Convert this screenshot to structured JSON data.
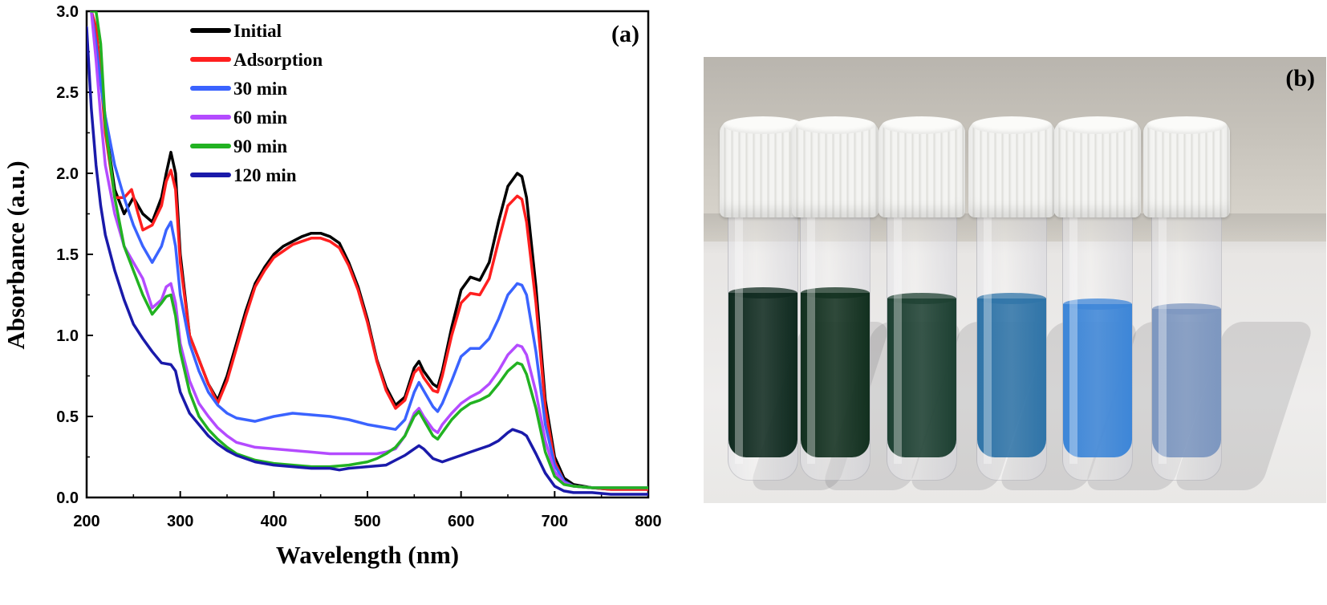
{
  "chart_data": {
    "type": "line",
    "panel_label": "(a)",
    "xlabel": "Wavelength (nm)",
    "ylabel": "Absorbance (a.u.)",
    "xlim": [
      200,
      800
    ],
    "ylim": [
      0,
      3.0
    ],
    "xticks": [
      200,
      300,
      400,
      500,
      600,
      700,
      800
    ],
    "yticks": [
      "0.0",
      "0.5",
      "1.0",
      "1.5",
      "2.0",
      "2.5",
      "3.0"
    ],
    "legend_position": "top-left",
    "grid": false,
    "series": [
      {
        "name": "Initial",
        "color": "#000000",
        "x": [
          205,
          210,
          215,
          220,
          230,
          240,
          250,
          260,
          270,
          280,
          285,
          290,
          295,
          300,
          310,
          320,
          330,
          340,
          350,
          360,
          370,
          380,
          390,
          400,
          410,
          420,
          430,
          440,
          450,
          460,
          470,
          480,
          490,
          500,
          510,
          520,
          530,
          540,
          550,
          555,
          560,
          570,
          575,
          580,
          590,
          600,
          610,
          620,
          630,
          640,
          650,
          660,
          665,
          670,
          680,
          690,
          700,
          710,
          720,
          740,
          760,
          780,
          800
        ],
        "y": [
          3.0,
          2.9,
          2.6,
          2.3,
          1.9,
          1.75,
          1.85,
          1.75,
          1.7,
          1.85,
          2.0,
          2.13,
          2.0,
          1.5,
          1.0,
          0.85,
          0.7,
          0.6,
          0.75,
          0.95,
          1.15,
          1.32,
          1.42,
          1.5,
          1.55,
          1.58,
          1.61,
          1.63,
          1.63,
          1.61,
          1.57,
          1.45,
          1.3,
          1.1,
          0.85,
          0.68,
          0.57,
          0.62,
          0.8,
          0.84,
          0.78,
          0.7,
          0.68,
          0.78,
          1.05,
          1.28,
          1.36,
          1.34,
          1.45,
          1.7,
          1.92,
          2.0,
          1.98,
          1.85,
          1.3,
          0.6,
          0.25,
          0.12,
          0.08,
          0.06,
          0.05,
          0.05,
          0.05
        ]
      },
      {
        "name": "Adsorption",
        "color": "#ff1f1f",
        "x": [
          205,
          210,
          215,
          220,
          230,
          240,
          248,
          255,
          260,
          270,
          280,
          285,
          290,
          295,
          300,
          310,
          320,
          330,
          340,
          350,
          360,
          370,
          380,
          390,
          400,
          410,
          420,
          430,
          440,
          450,
          460,
          470,
          480,
          490,
          500,
          510,
          520,
          530,
          540,
          550,
          555,
          560,
          570,
          575,
          580,
          590,
          600,
          610,
          620,
          630,
          640,
          650,
          660,
          665,
          670,
          680,
          690,
          700,
          710,
          720,
          740,
          760,
          780,
          800
        ],
        "y": [
          3.0,
          2.9,
          2.6,
          2.25,
          1.85,
          1.85,
          1.9,
          1.75,
          1.65,
          1.68,
          1.8,
          1.95,
          2.02,
          1.9,
          1.45,
          1.0,
          0.85,
          0.7,
          0.58,
          0.72,
          0.92,
          1.12,
          1.3,
          1.4,
          1.48,
          1.52,
          1.56,
          1.58,
          1.6,
          1.6,
          1.58,
          1.54,
          1.43,
          1.28,
          1.08,
          0.84,
          0.66,
          0.55,
          0.6,
          0.77,
          0.8,
          0.74,
          0.66,
          0.65,
          0.75,
          1.0,
          1.2,
          1.26,
          1.25,
          1.35,
          1.58,
          1.8,
          1.86,
          1.84,
          1.7,
          1.2,
          0.55,
          0.22,
          0.1,
          0.07,
          0.06,
          0.05,
          0.05,
          0.05
        ]
      },
      {
        "name": "30 min",
        "color": "#3a63ff",
        "x": [
          205,
          210,
          215,
          220,
          230,
          240,
          250,
          260,
          270,
          280,
          285,
          290,
          295,
          300,
          310,
          320,
          330,
          340,
          350,
          360,
          380,
          400,
          420,
          440,
          460,
          480,
          500,
          520,
          530,
          540,
          550,
          555,
          560,
          570,
          575,
          580,
          590,
          600,
          610,
          620,
          630,
          640,
          650,
          660,
          665,
          670,
          680,
          690,
          700,
          710,
          720,
          740,
          760,
          780,
          800
        ],
        "y": [
          3.0,
          2.8,
          2.55,
          2.35,
          2.05,
          1.85,
          1.68,
          1.55,
          1.45,
          1.55,
          1.65,
          1.7,
          1.55,
          1.25,
          0.95,
          0.78,
          0.65,
          0.57,
          0.52,
          0.49,
          0.47,
          0.5,
          0.52,
          0.51,
          0.5,
          0.48,
          0.45,
          0.43,
          0.42,
          0.48,
          0.65,
          0.71,
          0.66,
          0.56,
          0.53,
          0.58,
          0.72,
          0.87,
          0.92,
          0.92,
          0.98,
          1.1,
          1.25,
          1.32,
          1.31,
          1.25,
          0.9,
          0.45,
          0.2,
          0.1,
          0.07,
          0.06,
          0.06,
          0.06,
          0.06
        ]
      },
      {
        "name": "60 min",
        "color": "#b44bff",
        "x": [
          205,
          210,
          215,
          220,
          230,
          240,
          250,
          260,
          270,
          280,
          285,
          290,
          295,
          300,
          310,
          320,
          330,
          340,
          350,
          360,
          380,
          400,
          420,
          440,
          460,
          480,
          500,
          510,
          520,
          530,
          540,
          550,
          555,
          560,
          570,
          575,
          580,
          590,
          600,
          610,
          620,
          630,
          640,
          650,
          660,
          665,
          670,
          680,
          690,
          700,
          710,
          720,
          740,
          760,
          780,
          800
        ],
        "y": [
          3.0,
          2.7,
          2.35,
          2.05,
          1.75,
          1.55,
          1.45,
          1.35,
          1.17,
          1.22,
          1.3,
          1.32,
          1.2,
          0.95,
          0.72,
          0.58,
          0.5,
          0.43,
          0.38,
          0.34,
          0.31,
          0.3,
          0.29,
          0.28,
          0.27,
          0.27,
          0.27,
          0.27,
          0.28,
          0.3,
          0.38,
          0.52,
          0.55,
          0.5,
          0.42,
          0.4,
          0.45,
          0.52,
          0.58,
          0.62,
          0.65,
          0.7,
          0.78,
          0.88,
          0.94,
          0.93,
          0.88,
          0.65,
          0.35,
          0.16,
          0.09,
          0.07,
          0.06,
          0.06,
          0.06,
          0.06
        ]
      },
      {
        "name": "90 min",
        "color": "#22b222",
        "x": [
          205,
          210,
          215,
          220,
          230,
          240,
          250,
          260,
          270,
          280,
          285,
          290,
          295,
          300,
          310,
          320,
          330,
          340,
          350,
          360,
          380,
          400,
          420,
          440,
          460,
          480,
          500,
          510,
          520,
          530,
          540,
          550,
          555,
          560,
          570,
          575,
          580,
          590,
          600,
          610,
          620,
          630,
          640,
          650,
          660,
          665,
          670,
          680,
          690,
          700,
          710,
          720,
          740,
          760,
          780,
          800
        ],
        "y": [
          3.0,
          3.0,
          2.8,
          2.3,
          1.85,
          1.55,
          1.4,
          1.25,
          1.13,
          1.2,
          1.24,
          1.25,
          1.12,
          0.9,
          0.65,
          0.5,
          0.42,
          0.36,
          0.31,
          0.27,
          0.23,
          0.21,
          0.2,
          0.19,
          0.19,
          0.2,
          0.22,
          0.24,
          0.27,
          0.31,
          0.38,
          0.5,
          0.53,
          0.48,
          0.38,
          0.36,
          0.4,
          0.48,
          0.54,
          0.58,
          0.6,
          0.63,
          0.7,
          0.78,
          0.83,
          0.82,
          0.76,
          0.55,
          0.28,
          0.13,
          0.08,
          0.07,
          0.06,
          0.06,
          0.06,
          0.06
        ]
      },
      {
        "name": "120 min",
        "color": "#1a1aaa",
        "x": [
          200,
          205,
          210,
          215,
          220,
          230,
          240,
          250,
          260,
          270,
          280,
          290,
          295,
          300,
          310,
          320,
          330,
          340,
          350,
          360,
          380,
          400,
          420,
          440,
          460,
          470,
          480,
          500,
          520,
          530,
          540,
          550,
          555,
          560,
          570,
          580,
          590,
          600,
          610,
          620,
          630,
          640,
          650,
          655,
          660,
          665,
          670,
          680,
          690,
          700,
          710,
          720,
          740,
          760,
          780,
          800
        ],
        "y": [
          2.9,
          2.4,
          2.05,
          1.8,
          1.62,
          1.4,
          1.22,
          1.07,
          0.98,
          0.9,
          0.83,
          0.82,
          0.78,
          0.65,
          0.52,
          0.45,
          0.38,
          0.33,
          0.29,
          0.26,
          0.22,
          0.2,
          0.19,
          0.18,
          0.18,
          0.17,
          0.18,
          0.19,
          0.2,
          0.23,
          0.26,
          0.3,
          0.32,
          0.3,
          0.24,
          0.22,
          0.24,
          0.26,
          0.28,
          0.3,
          0.32,
          0.35,
          0.4,
          0.42,
          0.41,
          0.4,
          0.38,
          0.27,
          0.15,
          0.07,
          0.04,
          0.03,
          0.03,
          0.02,
          0.02,
          0.02
        ]
      }
    ]
  },
  "photo": {
    "panel_label": "(b)",
    "vials": [
      {
        "liquid_color": "#0f2a1f",
        "level": 0.62
      },
      {
        "liquid_color": "#12301f",
        "level": 0.62
      },
      {
        "liquid_color": "#1d4032",
        "level": 0.6
      },
      {
        "liquid_color": "#2f74a8",
        "level": 0.6
      },
      {
        "liquid_color": "#3d86d8",
        "level": 0.58
      },
      {
        "liquid_color": "#7d97c0",
        "level": 0.56
      }
    ]
  }
}
